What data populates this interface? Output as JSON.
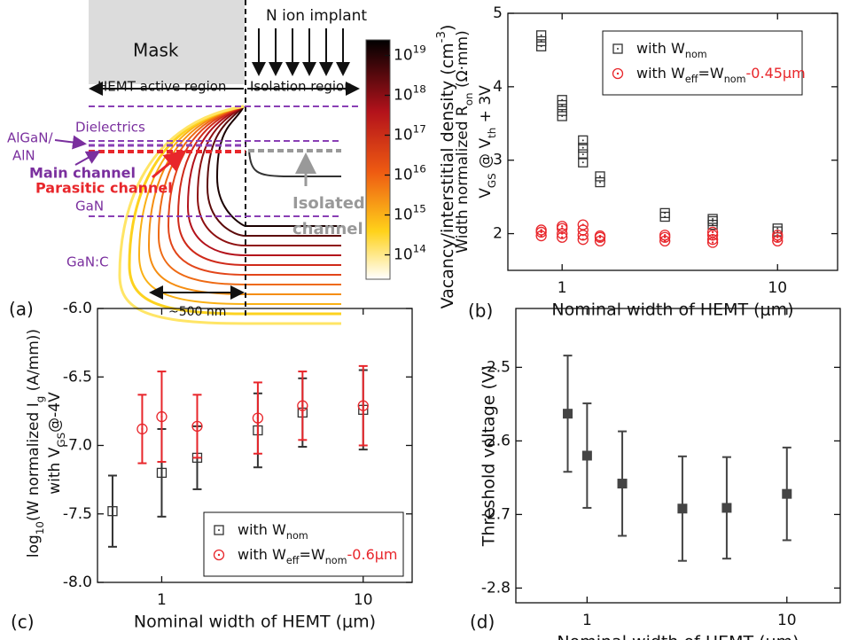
{
  "diagram": {
    "panel_label": "(a)",
    "mask": "Mask",
    "implant": "N ion implant",
    "active_region": "HEMT active region",
    "isolation_region": "Isolation region",
    "dielectrics": "Dielectrics",
    "algan": [
      "AlGaN/",
      "AlN"
    ],
    "main_channel": "Main channel",
    "parasitic_channel": "Parasitic channel",
    "gan": "GaN",
    "ganc": "GaN:C",
    "isolated_channel": [
      "Isolated",
      "channel"
    ],
    "scale": "~500 nm",
    "colorbar_base": "10",
    "colorbar_exponents": [
      19,
      18,
      17,
      16,
      15,
      14
    ],
    "colorbar_label": [
      "Vacancy/interstitial density (cm",
      "-3",
      ")"
    ]
  },
  "chart_data": [
    {
      "type": "scatter",
      "panel_label": "(b)",
      "xlabel": "Nominal width of HEMT (μm)",
      "ylabel": [
        [
          "Width normalized R",
          "on",
          " (Ω·mm)"
        ],
        [
          "V",
          "GS",
          " @ V",
          "th",
          " + 3V"
        ]
      ],
      "xscale": "log",
      "xlim": [
        0.56,
        19
      ],
      "ylim": [
        1.5,
        5
      ],
      "xticks": [
        1,
        10
      ],
      "yticks": [
        2,
        3,
        4,
        5
      ],
      "legend": "upper right",
      "series": [
        {
          "name": [
            "with W",
            "nom"
          ],
          "marker": "square",
          "color": "#333333",
          "x": [
            0.8,
            0.8,
            0.8,
            1,
            1,
            1,
            1,
            1.25,
            1.25,
            1.25,
            1.25,
            1.5,
            1.5,
            3,
            3,
            5,
            5,
            5,
            10,
            10
          ],
          "y": [
            4.55,
            4.62,
            4.7,
            3.6,
            3.67,
            3.75,
            3.82,
            2.97,
            3.08,
            3.17,
            3.27,
            2.7,
            2.78,
            2.23,
            2.28,
            2.12,
            2.17,
            2.2,
            2.03,
            2.07
          ]
        },
        {
          "name": [
            "with W",
            "eff",
            "=W",
            "nom",
            "-0.45μm"
          ],
          "marker": "circle",
          "color": "#e8262b",
          "x": [
            0.8,
            0.8,
            0.8,
            1,
            1,
            1,
            1,
            1.25,
            1.25,
            1.25,
            1.25,
            1.5,
            1.5,
            1.5,
            3,
            3,
            3,
            5,
            5,
            5,
            5,
            10,
            10,
            10
          ],
          "y": [
            1.97,
            2.02,
            2.05,
            1.95,
            2.0,
            2.07,
            2.1,
            1.92,
            1.98,
            2.05,
            2.12,
            1.9,
            1.95,
            1.97,
            1.9,
            1.95,
            1.98,
            1.88,
            1.92,
            1.98,
            2.02,
            1.9,
            1.95,
            1.98
          ]
        }
      ]
    },
    {
      "type": "scatter",
      "panel_label": "(c)",
      "xlabel": "Nominal width of HEMT (μm)",
      "ylabel": [
        [
          "log",
          "10",
          "(W normalized I",
          "g",
          " (A/mm))"
        ],
        [
          "with V",
          "GS",
          "@-4V"
        ]
      ],
      "xscale": "log",
      "xlim": [
        0.48,
        17.5
      ],
      "ylim": [
        -8,
        -6
      ],
      "xticks": [
        1,
        10
      ],
      "yticks": [
        {
          "value": -8,
          "label": "-8.0"
        },
        -7.5,
        {
          "value": -7,
          "label": "-7.0"
        },
        -6.5,
        {
          "value": -6,
          "label": "-6.0"
        }
      ],
      "legend": "lower right",
      "series": [
        {
          "name": [
            "with W",
            "nom"
          ],
          "marker": "square",
          "color": "#333333",
          "x": [
            0.57,
            1,
            1.5,
            3,
            5,
            10
          ],
          "y": [
            -7.48,
            -7.2,
            -7.09,
            -6.89,
            -6.76,
            -6.74
          ],
          "errors": [
            0.26,
            0.32,
            0.23,
            0.27,
            0.25,
            0.29
          ]
        },
        {
          "name": [
            "with W",
            "eff",
            "=W",
            "nom",
            "-0.6μm"
          ],
          "marker": "circle",
          "color": "#e8262b",
          "x": [
            0.8,
            1,
            1.5,
            3,
            5,
            10
          ],
          "y": [
            -6.88,
            -6.79,
            -6.86,
            -6.8,
            -6.71,
            -6.71
          ],
          "errors": [
            0.25,
            0.33,
            0.23,
            0.26,
            0.25,
            0.29
          ]
        }
      ]
    },
    {
      "type": "scatter",
      "panel_label": "(d)",
      "xlabel": "Nominal width of HEMT (μm)",
      "ylabel": "Threshold voltage (V)",
      "xscale": "log",
      "xlim": [
        0.44,
        18.5
      ],
      "ylim": [
        -2.82,
        -2.42
      ],
      "xticks": [
        1,
        10
      ],
      "yticks": [
        -2.8,
        -2.7,
        -2.6,
        -2.5
      ],
      "series": [
        {
          "marker": "filled-square",
          "color": "#444444",
          "x": [
            0.8,
            1,
            1.5,
            3,
            5,
            10
          ],
          "y": [
            -2.563,
            -2.62,
            -2.658,
            -2.692,
            -2.691,
            -2.672
          ],
          "errors": [
            0.079,
            0.071,
            0.071,
            0.071,
            0.069,
            0.063
          ]
        }
      ]
    }
  ]
}
